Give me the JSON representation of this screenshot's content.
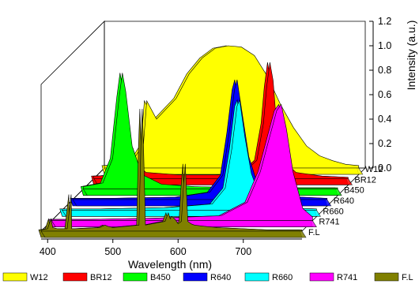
{
  "chart_data": {
    "type": "area",
    "title": "",
    "xlabel": "Wavelength (nm)",
    "ylabel": "Intensity (a.u.)",
    "xlim": [
      390,
      790
    ],
    "ylim": [
      0,
      1.2
    ],
    "x_ticks": [
      "400",
      "500",
      "600",
      "700"
    ],
    "y_ticks": [
      "0.0",
      "0.2",
      "0.4",
      "0.6",
      "0.8",
      "1.0",
      "1.2"
    ],
    "grid": false,
    "legend_position": "bottom",
    "series": [
      {
        "name": "W12",
        "color": "#FFFF00",
        "x": [
          390,
          430,
          450,
          455,
          470,
          500,
          520,
          540,
          560,
          580,
          600,
          620,
          640,
          660,
          680,
          700,
          720,
          740,
          760,
          780
        ],
        "y": [
          0.02,
          0.03,
          0.2,
          0.55,
          0.4,
          0.57,
          0.77,
          0.9,
          0.98,
          1.0,
          0.99,
          0.92,
          0.75,
          0.52,
          0.33,
          0.18,
          0.1,
          0.06,
          0.03,
          0.02
        ]
      },
      {
        "name": "BR12",
        "color": "#FF0000",
        "x": [
          390,
          430,
          445,
          450,
          455,
          470,
          520,
          580,
          620,
          640,
          650,
          655,
          660,
          665,
          670,
          680,
          700,
          740,
          780
        ],
        "y": [
          0.02,
          0.03,
          0.1,
          0.25,
          0.12,
          0.05,
          0.03,
          0.03,
          0.05,
          0.15,
          0.45,
          0.75,
          0.95,
          0.8,
          0.45,
          0.15,
          0.05,
          0.02,
          0.01
        ]
      },
      {
        "name": "B450",
        "color": "#00FF00",
        "x": [
          390,
          420,
          435,
          445,
          450,
          455,
          465,
          480,
          510,
          560,
          640,
          780
        ],
        "y": [
          0.02,
          0.05,
          0.25,
          0.75,
          0.95,
          0.8,
          0.35,
          0.12,
          0.04,
          0.02,
          0.01,
          0.01
        ]
      },
      {
        "name": "R640",
        "color": "#0000FF",
        "x": [
          390,
          450,
          550,
          600,
          620,
          630,
          638,
          642,
          650,
          660,
          675,
          700,
          780
        ],
        "y": [
          0.01,
          0.01,
          0.02,
          0.06,
          0.2,
          0.55,
          0.9,
          0.98,
          0.7,
          0.35,
          0.1,
          0.03,
          0.01
        ]
      },
      {
        "name": "R660",
        "color": "#00FFFF",
        "x": [
          390,
          450,
          550,
          620,
          640,
          650,
          658,
          662,
          670,
          680,
          695,
          720,
          780
        ],
        "y": [
          0.01,
          0.01,
          0.02,
          0.05,
          0.18,
          0.5,
          0.85,
          0.9,
          0.6,
          0.3,
          0.08,
          0.02,
          0.01
        ]
      },
      {
        "name": "R741",
        "color": "#FF00FF",
        "x": [
          390,
          450,
          550,
          650,
          690,
          710,
          725,
          735,
          742,
          750,
          760,
          775,
          790
        ],
        "y": [
          0.01,
          0.01,
          0.02,
          0.04,
          0.15,
          0.4,
          0.7,
          0.9,
          0.95,
          0.75,
          0.4,
          0.1,
          0.03
        ]
      },
      {
        "name": "F.L",
        "color": "#808000",
        "x": [
          390,
          400,
          405,
          408,
          415,
          430,
          436,
          437,
          442,
          480,
          488,
          492,
          500,
          540,
          543,
          545,
          547,
          550,
          580,
          585,
          588,
          590,
          595,
          600,
          605,
          608,
          611,
          613,
          615,
          620,
          625,
          640,
          660,
          700,
          740,
          780,
          790
        ],
        "y": [
          0.01,
          0.02,
          0.1,
          0.03,
          0.02,
          0.02,
          0.3,
          0.02,
          0.02,
          0.03,
          0.05,
          0.04,
          0.03,
          0.05,
          0.7,
          1.0,
          0.7,
          0.05,
          0.08,
          0.15,
          0.1,
          0.12,
          0.1,
          0.06,
          0.08,
          0.35,
          0.55,
          0.3,
          0.08,
          0.06,
          0.05,
          0.04,
          0.03,
          0.02,
          0.01,
          0.01,
          0.01
        ]
      }
    ]
  }
}
